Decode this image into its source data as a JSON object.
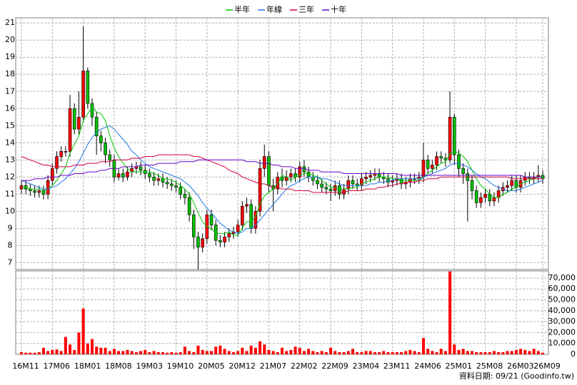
{
  "chart_data": {
    "type": "candlestick",
    "grid": true,
    "legend": "top",
    "categories": [
      "16M11",
      null,
      null,
      null,
      null,
      null,
      null,
      "17M06",
      null,
      null,
      null,
      null,
      null,
      null,
      "18M01",
      null,
      null,
      null,
      null,
      null,
      null,
      "18M08",
      null,
      null,
      null,
      null,
      null,
      null,
      "19M03",
      null,
      null,
      null,
      null,
      null,
      null,
      "19M10",
      null,
      null,
      null,
      null,
      null,
      null,
      "20M05",
      null,
      null,
      null,
      null,
      null,
      null,
      "20M12",
      null,
      null,
      null,
      null,
      null,
      null,
      "21M07",
      null,
      null,
      null,
      null,
      null,
      null,
      "22M02",
      null,
      null,
      null,
      null,
      null,
      null,
      "22M09",
      null,
      null,
      null,
      null,
      null,
      null,
      "23M04",
      null,
      null,
      null,
      null,
      null,
      null,
      "23M11",
      null,
      null,
      null,
      null,
      null,
      null,
      "24M06",
      null,
      null,
      null,
      null,
      null,
      null,
      "25M01",
      null,
      null,
      null,
      null,
      null,
      null,
      "25M08",
      null,
      null,
      null,
      null,
      null,
      null,
      "26M03",
      null,
      null,
      null,
      null,
      null,
      "26M09"
    ],
    "open": [
      11.3,
      11.5,
      11.3,
      11.2,
      11.1,
      11.2,
      11.0,
      11.8,
      12.5,
      13.2,
      13.5,
      13.5,
      16.0,
      14.8,
      15.5,
      18.2,
      16.3,
      15.5,
      14.4,
      14.0,
      13.3,
      13.0,
      12.0,
      12.2,
      12.0,
      12.3,
      12.5,
      12.6,
      12.4,
      12.2,
      12.0,
      11.8,
      11.9,
      11.7,
      11.6,
      11.5,
      11.4,
      11.0,
      10.8,
      9.8,
      8.5,
      7.9,
      8.4,
      9.8,
      9.2,
      8.3,
      8.2,
      8.5,
      8.7,
      8.8,
      9.2,
      10.3,
      10.4,
      9.0,
      10.0,
      12.5,
      13.2,
      11.5,
      11.3,
      12.0,
      11.8,
      12.0,
      12.2,
      12.0,
      12.6,
      12.3,
      12.0,
      11.8,
      11.6,
      11.4,
      11.3,
      11.2,
      11.5,
      11.0,
      11.3,
      11.8,
      11.6,
      11.5,
      11.9,
      12.0,
      12.1,
      12.2,
      12.0,
      11.9,
      11.7,
      11.8,
      11.9,
      11.6,
      11.7,
      11.9,
      11.9,
      12.0,
      13.0,
      12.5,
      12.7,
      13.2,
      13.1,
      13.0,
      15.5,
      13.3,
      12.5,
      12.2,
      11.8,
      11.2,
      10.5,
      10.8,
      11.0,
      10.6,
      10.8,
      11.2,
      11.4,
      11.5,
      11.8,
      11.4,
      11.8,
      12.0,
      11.9,
      12.0,
      12.1
    ],
    "high": [
      11.8,
      11.8,
      11.6,
      11.5,
      11.5,
      11.5,
      12.1,
      12.8,
      13.5,
      13.8,
      13.8,
      16.8,
      16.3,
      17.0,
      20.8,
      18.4,
      16.6,
      15.8,
      14.7,
      14.3,
      13.6,
      13.3,
      12.5,
      12.5,
      12.6,
      12.8,
      12.9,
      12.9,
      12.7,
      12.5,
      12.3,
      12.2,
      12.2,
      12.0,
      11.9,
      11.8,
      11.7,
      11.3,
      11.1,
      10.1,
      8.8,
      8.7,
      10.1,
      10.1,
      9.5,
      8.6,
      8.8,
      9.0,
      9.1,
      9.5,
      10.6,
      10.8,
      10.7,
      10.3,
      13.0,
      13.9,
      13.5,
      11.9,
      12.3,
      12.5,
      12.4,
      12.5,
      12.5,
      12.9,
      13.0,
      12.6,
      12.3,
      12.1,
      11.9,
      11.7,
      11.6,
      11.8,
      11.8,
      11.6,
      12.1,
      12.1,
      11.9,
      12.2,
      12.3,
      12.4,
      12.5,
      12.5,
      12.3,
      12.2,
      12.1,
      12.2,
      12.2,
      12.0,
      12.2,
      12.2,
      12.3,
      14.0,
      13.3,
      13.0,
      13.5,
      13.5,
      13.4,
      17.0,
      15.7,
      13.6,
      12.8,
      12.5,
      12.1,
      11.5,
      11.1,
      11.3,
      11.3,
      11.1,
      11.5,
      11.7,
      11.8,
      12.1,
      12.1,
      12.1,
      12.3,
      12.3,
      12.3,
      12.7,
      12.4
    ],
    "low": [
      11.0,
      11.0,
      10.9,
      10.8,
      10.8,
      10.7,
      10.7,
      11.5,
      12.2,
      12.9,
      13.2,
      13.2,
      14.5,
      14.5,
      15.2,
      16.0,
      15.0,
      13.3,
      13.5,
      12.8,
      12.6,
      11.7,
      11.8,
      11.7,
      11.8,
      12.0,
      12.2,
      12.1,
      11.9,
      11.7,
      11.5,
      11.5,
      11.4,
      11.3,
      11.2,
      11.1,
      10.7,
      10.4,
      9.4,
      7.8,
      6.6,
      7.6,
      8.1,
      8.9,
      8.0,
      7.9,
      7.9,
      8.2,
      8.4,
      8.5,
      8.9,
      9.9,
      8.7,
      8.7,
      9.7,
      12.0,
      11.1,
      10.0,
      11.0,
      11.4,
      11.5,
      11.7,
      11.7,
      11.7,
      12.0,
      11.7,
      11.5,
      11.3,
      11.1,
      11.0,
      10.6,
      10.9,
      10.7,
      10.7,
      11.0,
      11.3,
      11.2,
      11.2,
      11.6,
      11.7,
      11.8,
      11.7,
      11.6,
      11.4,
      11.4,
      11.5,
      11.3,
      11.3,
      11.4,
      11.6,
      11.6,
      11.7,
      12.2,
      12.2,
      12.4,
      12.8,
      12.6,
      12.8,
      12.7,
      12.0,
      11.6,
      9.4,
      10.7,
      10.2,
      10.2,
      10.5,
      10.3,
      10.3,
      10.5,
      10.9,
      11.1,
      11.2,
      11.1,
      11.1,
      11.5,
      11.6,
      11.6,
      11.7,
      11.6
    ],
    "close": [
      11.5,
      11.3,
      11.2,
      11.1,
      11.2,
      11.0,
      11.8,
      12.5,
      13.2,
      13.5,
      13.5,
      16.0,
      14.8,
      15.5,
      18.2,
      16.3,
      15.5,
      14.4,
      14.0,
      13.3,
      13.0,
      12.0,
      12.2,
      12.0,
      12.3,
      12.5,
      12.6,
      12.4,
      12.2,
      12.0,
      11.8,
      11.9,
      11.7,
      11.6,
      11.5,
      11.4,
      11.0,
      10.8,
      9.8,
      8.5,
      7.9,
      8.4,
      9.8,
      9.2,
      8.3,
      8.2,
      8.5,
      8.7,
      8.8,
      9.2,
      10.3,
      10.4,
      9.0,
      10.0,
      12.5,
      13.2,
      11.5,
      11.3,
      12.0,
      11.8,
      12.0,
      12.2,
      12.0,
      12.6,
      12.3,
      12.0,
      11.8,
      11.6,
      11.4,
      11.3,
      11.2,
      11.5,
      11.0,
      11.3,
      11.8,
      11.6,
      11.5,
      11.9,
      12.0,
      12.1,
      12.2,
      12.0,
      11.9,
      11.7,
      11.8,
      11.9,
      11.6,
      11.7,
      11.9,
      11.9,
      12.0,
      13.0,
      12.5,
      12.7,
      13.2,
      13.1,
      13.0,
      15.5,
      13.3,
      12.5,
      12.2,
      11.8,
      11.2,
      10.5,
      10.8,
      11.0,
      10.6,
      10.8,
      11.2,
      11.4,
      11.5,
      11.8,
      11.4,
      11.8,
      12.0,
      11.9,
      12.0,
      12.1,
      11.9
    ],
    "up_color": "#ff0000",
    "down_color": "#00c000",
    "ylim": [
      6.6,
      21.3
    ],
    "yticks": [
      7,
      8,
      9,
      10,
      11,
      12,
      13,
      14,
      15,
      16,
      17,
      18,
      19,
      20,
      21
    ],
    "series": [
      {
        "name": "半年",
        "color": "#00c800",
        "values": [
          11.4,
          11.4,
          11.3,
          11.3,
          11.3,
          11.2,
          11.3,
          11.5,
          11.8,
          12.2,
          12.6,
          13.4,
          13.9,
          14.4,
          15.3,
          15.7,
          16.1,
          15.8,
          15.7,
          15.3,
          14.4,
          13.7,
          13.2,
          12.8,
          12.5,
          12.3,
          12.3,
          12.3,
          12.3,
          12.3,
          12.2,
          12.1,
          11.9,
          11.9,
          11.8,
          11.7,
          11.5,
          11.3,
          11.0,
          10.5,
          9.9,
          9.4,
          9.1,
          9.0,
          8.7,
          8.7,
          8.7,
          8.8,
          8.6,
          8.6,
          9.0,
          9.4,
          9.4,
          9.7,
          10.4,
          10.9,
          11.1,
          11.3,
          11.6,
          12.1,
          12.0,
          11.8,
          12.0,
          12.1,
          12.2,
          12.2,
          12.1,
          12.0,
          11.8,
          11.6,
          11.4,
          11.4,
          11.3,
          11.3,
          11.3,
          11.4,
          11.4,
          11.6,
          11.7,
          11.8,
          11.9,
          12.0,
          12.0,
          12.0,
          11.9,
          11.9,
          11.8,
          11.8,
          11.8,
          11.8,
          11.8,
          12.0,
          12.2,
          12.4,
          12.6,
          12.8,
          12.9,
          13.4,
          13.5,
          13.4,
          13.2,
          12.9,
          12.4,
          11.9,
          11.5,
          11.3,
          11.0,
          10.8,
          10.8,
          11.0,
          11.1,
          11.3,
          11.4,
          11.6,
          11.7,
          11.8,
          11.9,
          12.0,
          12.0
        ]
      },
      {
        "name": "年線",
        "color": "#1e78e6",
        "values": [
          11.8,
          11.7,
          11.6,
          11.5,
          11.4,
          11.3,
          11.3,
          11.4,
          11.5,
          11.7,
          11.9,
          12.2,
          12.5,
          12.9,
          13.4,
          13.9,
          14.3,
          14.6,
          14.8,
          14.9,
          15.0,
          14.8,
          14.5,
          14.2,
          13.9,
          13.5,
          13.3,
          13.0,
          12.8,
          12.6,
          12.5,
          12.4,
          12.3,
          12.2,
          12.1,
          12.0,
          11.9,
          11.7,
          11.5,
          11.2,
          10.9,
          10.5,
          10.2,
          9.9,
          9.6,
          9.3,
          9.1,
          8.9,
          8.8,
          8.7,
          8.8,
          9.0,
          9.0,
          9.2,
          9.5,
          9.8,
          10.1,
          10.4,
          10.7,
          11.0,
          11.3,
          11.5,
          11.6,
          11.8,
          11.9,
          12.0,
          12.0,
          12.0,
          11.9,
          11.9,
          11.8,
          11.7,
          11.6,
          11.5,
          11.5,
          11.5,
          11.5,
          11.5,
          11.5,
          11.6,
          11.6,
          11.7,
          11.7,
          11.8,
          11.8,
          11.9,
          11.9,
          11.9,
          11.9,
          11.9,
          11.9,
          12.0,
          12.1,
          12.2,
          12.3,
          12.4,
          12.5,
          12.7,
          12.8,
          12.8,
          12.7,
          12.6,
          12.4,
          12.2,
          12.0,
          11.9,
          11.7,
          11.5,
          11.4,
          11.3,
          11.2,
          11.2,
          11.2,
          11.3,
          11.4,
          11.5,
          11.6,
          11.7,
          11.8
        ]
      },
      {
        "name": "三年",
        "color": "#d00040",
        "values": [
          13.2,
          13.1,
          13.0,
          12.9,
          12.8,
          12.7,
          12.7,
          12.6,
          12.6,
          12.6,
          12.6,
          12.6,
          12.7,
          12.7,
          12.7,
          12.8,
          12.8,
          12.8,
          12.9,
          12.9,
          12.9,
          13.0,
          13.0,
          13.0,
          13.0,
          13.1,
          13.1,
          13.1,
          13.2,
          13.2,
          13.2,
          13.3,
          13.3,
          13.3,
          13.3,
          13.3,
          13.3,
          13.3,
          13.3,
          13.2,
          13.2,
          13.1,
          13.0,
          12.9,
          12.8,
          12.7,
          12.6,
          12.4,
          12.3,
          12.2,
          12.0,
          11.9,
          11.8,
          11.7,
          11.6,
          11.6,
          11.5,
          11.4,
          11.4,
          11.3,
          11.3,
          11.3,
          11.2,
          11.2,
          11.2,
          11.2,
          11.1,
          11.1,
          11.1,
          11.1,
          11.1,
          11.1,
          11.1,
          11.1,
          11.2,
          11.2,
          11.2,
          11.2,
          11.3,
          11.3,
          11.3,
          11.4,
          11.4,
          11.5,
          11.5,
          11.6,
          11.6,
          11.7,
          11.7,
          11.7,
          11.8,
          11.8,
          11.9,
          11.9,
          11.9,
          12.0,
          12.0,
          12.0,
          12.0,
          12.0,
          12.0,
          12.0,
          12.0,
          12.0,
          12.0,
          12.0,
          12.0,
          12.0,
          12.0,
          12.0,
          12.0,
          11.9,
          11.9,
          11.9,
          11.9,
          11.9,
          11.9,
          11.9,
          11.9
        ]
      },
      {
        "name": "十年",
        "color": "#6a00c8",
        "values": [
          11.8,
          11.8,
          11.8,
          11.9,
          11.9,
          11.9,
          12.0,
          12.0,
          12.0,
          12.1,
          12.1,
          12.1,
          12.2,
          12.2,
          12.2,
          12.3,
          12.3,
          12.3,
          12.4,
          12.4,
          12.5,
          12.5,
          12.5,
          12.6,
          12.6,
          12.6,
          12.6,
          12.7,
          12.7,
          12.7,
          12.7,
          12.8,
          12.8,
          12.8,
          12.8,
          12.8,
          12.9,
          12.9,
          12.9,
          12.9,
          13.0,
          13.0,
          13.0,
          13.0,
          13.0,
          13.0,
          13.0,
          13.0,
          13.0,
          13.0,
          13.0,
          12.9,
          12.9,
          12.9,
          12.8,
          12.8,
          12.8,
          12.7,
          12.7,
          12.6,
          12.6,
          12.6,
          12.5,
          12.5,
          12.5,
          12.4,
          12.4,
          12.4,
          12.3,
          12.3,
          12.3,
          12.3,
          12.3,
          12.2,
          12.2,
          12.2,
          12.2,
          12.2,
          12.2,
          12.2,
          12.2,
          12.2,
          12.2,
          12.2,
          12.2,
          12.2,
          12.1,
          12.1,
          12.1,
          12.1,
          12.1,
          12.1,
          12.1,
          12.1,
          12.1,
          12.1,
          12.1,
          12.1,
          12.1,
          12.1,
          12.1,
          12.1,
          12.1,
          12.1,
          12.1,
          12.1,
          12.1,
          12.1,
          12.1,
          12.1,
          12.1,
          12.1,
          12.1,
          12.1,
          12.0,
          12.0,
          12.0,
          12.0,
          12.0
        ]
      }
    ],
    "volume": {
      "axis": "y2",
      "color": "#ff0000",
      "values": [
        2000,
        1500,
        1500,
        1500,
        2000,
        6000,
        3000,
        4000,
        4500,
        3000,
        16000,
        9000,
        4000,
        20000,
        42000,
        10000,
        14000,
        7000,
        6000,
        6000,
        3000,
        5000,
        3000,
        3000,
        4000,
        3000,
        2000,
        3000,
        4000,
        2000,
        3000,
        2000,
        2000,
        1500,
        2000,
        1500,
        2000,
        7000,
        3000,
        2000,
        8000,
        4000,
        3000,
        3000,
        7000,
        8000,
        5000,
        3000,
        2000,
        3000,
        6000,
        3000,
        8000,
        6000,
        12000,
        9000,
        4000,
        3000,
        2000,
        6000,
        3000,
        4000,
        7000,
        6000,
        3000,
        5000,
        3000,
        2000,
        3000,
        2000,
        6000,
        3000,
        2000,
        2000,
        3000,
        5000,
        2000,
        2000,
        3000,
        3000,
        2000,
        2000,
        3000,
        2000,
        2000,
        2000,
        2000,
        3000,
        4000,
        3000,
        2000,
        15000,
        5000,
        3000,
        2000,
        5000,
        3000,
        76000,
        9000,
        4000,
        5000,
        3000,
        3000,
        2000,
        2000,
        2000,
        2000,
        3000,
        2000,
        2000,
        3000,
        3000,
        4000,
        5000,
        4000,
        3000,
        5000,
        3000,
        1500
      ]
    },
    "y2lim": [
      0,
      76500
    ],
    "y2ticks": [
      0,
      {
        "value": 10000,
        "label": "10,000"
      },
      {
        "value": 20000,
        "label": "20,000"
      },
      {
        "value": 30000,
        "label": "30,000"
      },
      {
        "value": 40000,
        "label": "40,000"
      },
      {
        "value": 50000,
        "label": "50,000"
      },
      {
        "value": 60000,
        "label": "60,000"
      },
      {
        "value": 70000,
        "label": "70,000"
      }
    ]
  },
  "footer": "資料日期: 09/21 (Goodinfo.tw)"
}
